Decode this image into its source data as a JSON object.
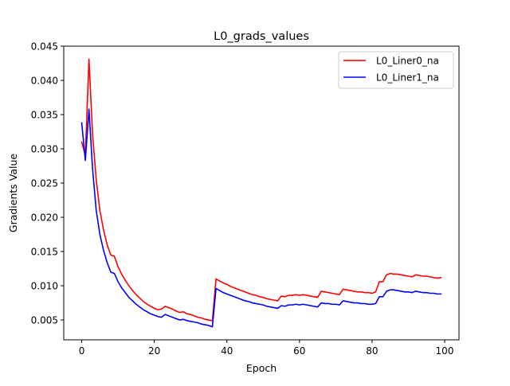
{
  "chart_data": {
    "type": "line",
    "title": "L0_grads_values",
    "xlabel": "Epoch",
    "ylabel": "Gradients Value",
    "xlim": [
      -4.95,
      103.95
    ],
    "ylim": [
      0.0021,
      0.045
    ],
    "xticks": [
      0,
      20,
      40,
      60,
      80,
      100
    ],
    "yticks": [
      0.005,
      0.01,
      0.015,
      0.02,
      0.025,
      0.03,
      0.035,
      0.04,
      0.045
    ],
    "ytick_labels": [
      "0.005",
      "0.010",
      "0.015",
      "0.020",
      "0.025",
      "0.030",
      "0.035",
      "0.040",
      "0.045"
    ],
    "grid": false,
    "legend_position": "upper-right",
    "series": [
      {
        "name": "L0_Liner0_na",
        "color": "#ff0000",
        "x": [
          0,
          1,
          2,
          3,
          4,
          5,
          6,
          7,
          8,
          9,
          10,
          11,
          12,
          13,
          14,
          15,
          16,
          17,
          18,
          19,
          20,
          21,
          22,
          23,
          24,
          25,
          26,
          27,
          28,
          29,
          30,
          31,
          32,
          33,
          34,
          35,
          36,
          37,
          38,
          39,
          40,
          41,
          42,
          43,
          44,
          45,
          46,
          47,
          48,
          49,
          50,
          51,
          52,
          53,
          54,
          55,
          56,
          57,
          58,
          59,
          60,
          61,
          62,
          63,
          64,
          65,
          66,
          67,
          68,
          69,
          70,
          71,
          72,
          73,
          74,
          75,
          76,
          77,
          78,
          79,
          80,
          81,
          82,
          83,
          84,
          85,
          86,
          87,
          88,
          89,
          90,
          91,
          92,
          93,
          94,
          95,
          96,
          97,
          98,
          99
        ],
        "values": [
          0.031,
          0.029,
          0.0431,
          0.032,
          0.0255,
          0.021,
          0.0182,
          0.016,
          0.0145,
          0.0143,
          0.0128,
          0.0117,
          0.0108,
          0.01,
          0.0093,
          0.0087,
          0.0082,
          0.0077,
          0.0073,
          0.007,
          0.0067,
          0.0065,
          0.0066,
          0.007,
          0.0068,
          0.0066,
          0.0063,
          0.0061,
          0.0062,
          0.0059,
          0.0058,
          0.0056,
          0.0054,
          0.0053,
          0.0051,
          0.005,
          0.0049,
          0.011,
          0.0107,
          0.0104,
          0.0102,
          0.0099,
          0.0097,
          0.0095,
          0.0093,
          0.0091,
          0.0089,
          0.0087,
          0.0086,
          0.0084,
          0.0083,
          0.0081,
          0.008,
          0.0079,
          0.0078,
          0.0085,
          0.0084,
          0.0086,
          0.0086,
          0.0087,
          0.0086,
          0.0087,
          0.0086,
          0.0085,
          0.0084,
          0.0083,
          0.0092,
          0.0091,
          0.009,
          0.0089,
          0.0088,
          0.0087,
          0.0095,
          0.0094,
          0.0093,
          0.0092,
          0.0091,
          0.0091,
          0.009,
          0.009,
          0.0089,
          0.0091,
          0.0106,
          0.0106,
          0.0116,
          0.0118,
          0.0117,
          0.0117,
          0.0116,
          0.0115,
          0.0114,
          0.0113,
          0.0116,
          0.0115,
          0.0114,
          0.0114,
          0.0113,
          0.0112,
          0.0111,
          0.0112
        ]
      },
      {
        "name": "L0_Liner1_na",
        "color": "#0000ff",
        "x": [
          0,
          1,
          2,
          3,
          4,
          5,
          6,
          7,
          8,
          9,
          10,
          11,
          12,
          13,
          14,
          15,
          16,
          17,
          18,
          19,
          20,
          21,
          22,
          23,
          24,
          25,
          26,
          27,
          28,
          29,
          30,
          31,
          32,
          33,
          34,
          35,
          36,
          37,
          38,
          39,
          40,
          41,
          42,
          43,
          44,
          45,
          46,
          47,
          48,
          49,
          50,
          51,
          52,
          53,
          54,
          55,
          56,
          57,
          58,
          59,
          60,
          61,
          62,
          63,
          64,
          65,
          66,
          67,
          68,
          69,
          70,
          71,
          72,
          73,
          74,
          75,
          76,
          77,
          78,
          79,
          80,
          81,
          82,
          83,
          84,
          85,
          86,
          87,
          88,
          89,
          90,
          91,
          92,
          93,
          94,
          95,
          96,
          97,
          98,
          99
        ],
        "values": [
          0.0338,
          0.0283,
          0.0358,
          0.027,
          0.021,
          0.0175,
          0.0152,
          0.0134,
          0.012,
          0.0118,
          0.0106,
          0.0097,
          0.009,
          0.0083,
          0.0078,
          0.0073,
          0.0069,
          0.0065,
          0.0062,
          0.0059,
          0.0057,
          0.0055,
          0.0054,
          0.0058,
          0.0056,
          0.0054,
          0.0052,
          0.005,
          0.0051,
          0.0049,
          0.0048,
          0.0047,
          0.0046,
          0.0044,
          0.0043,
          0.0042,
          0.004,
          0.0096,
          0.0093,
          0.009,
          0.0088,
          0.0086,
          0.0084,
          0.0082,
          0.008,
          0.0078,
          0.0077,
          0.0075,
          0.0074,
          0.0073,
          0.0072,
          0.007,
          0.0069,
          0.0068,
          0.0067,
          0.0071,
          0.007,
          0.0072,
          0.0072,
          0.0073,
          0.0072,
          0.0073,
          0.0072,
          0.0071,
          0.007,
          0.0069,
          0.0075,
          0.0074,
          0.0074,
          0.0073,
          0.0073,
          0.0072,
          0.0078,
          0.0077,
          0.0076,
          0.0075,
          0.0075,
          0.0074,
          0.0074,
          0.0073,
          0.0073,
          0.0074,
          0.0084,
          0.0084,
          0.0092,
          0.0094,
          0.0094,
          0.0093,
          0.0092,
          0.0091,
          0.0091,
          0.009,
          0.0092,
          0.0091,
          0.009,
          0.009,
          0.0089,
          0.0089,
          0.0088,
          0.0088
        ]
      }
    ]
  }
}
